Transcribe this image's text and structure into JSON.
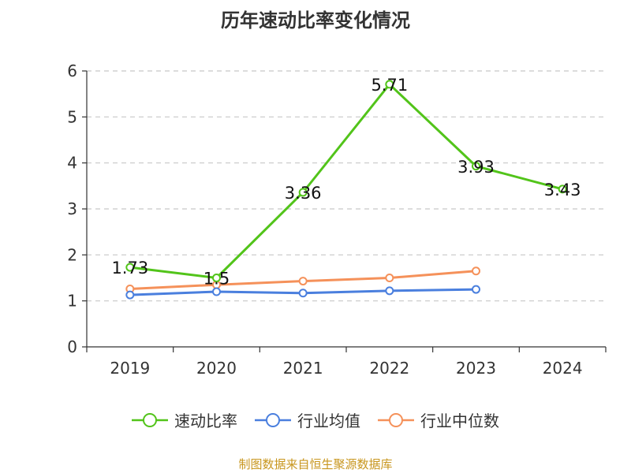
{
  "chart_data": {
    "type": "line",
    "title": "历年速动比率变化情况",
    "categories": [
      "2019",
      "2020",
      "2021",
      "2022",
      "2023",
      "2024"
    ],
    "ylim": [
      0,
      6
    ],
    "yticks": [
      0,
      1,
      2,
      3,
      4,
      5,
      6
    ],
    "grid": true,
    "legend_position": "bottom",
    "series": [
      {
        "name": "速动比率",
        "color": "#52c41a",
        "values": [
          1.73,
          1.5,
          3.36,
          5.71,
          3.93,
          3.43
        ],
        "labels": [
          "1.73",
          "1.5",
          "3.36",
          "5.71",
          "3.93",
          "3.43"
        ]
      },
      {
        "name": "行业均值",
        "color": "#4a7fde",
        "values": [
          1.13,
          1.2,
          1.17,
          1.22,
          1.25,
          null
        ]
      },
      {
        "name": "行业中位数",
        "color": "#f5915a",
        "values": [
          1.26,
          1.35,
          1.43,
          1.5,
          1.65,
          null
        ]
      }
    ]
  },
  "source": "制图数据来自恒生聚源数据库"
}
